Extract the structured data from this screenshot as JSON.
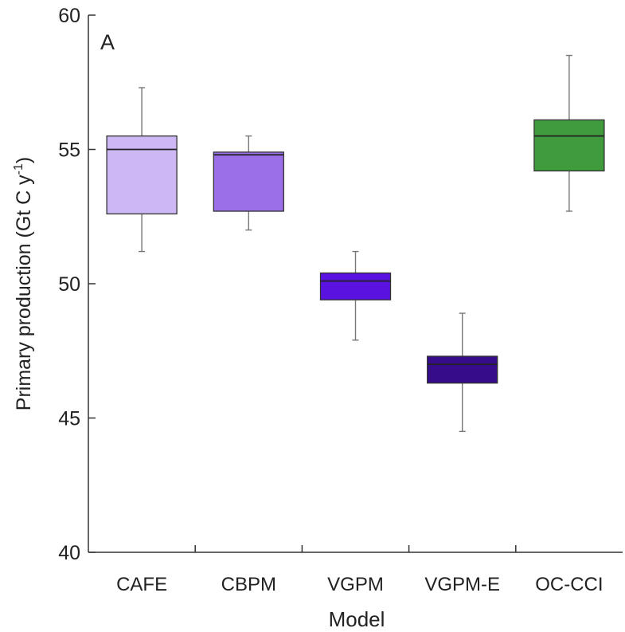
{
  "chart_data": {
    "type": "boxplot",
    "panel_label": "A",
    "xlabel": "Model",
    "ylabel_main": "Primary production (Gt C y",
    "ylabel_sup": "-1",
    "ylabel_tail": ")",
    "ylim": [
      40,
      60
    ],
    "yticks": [
      40,
      45,
      50,
      55,
      60
    ],
    "grid": false,
    "categories": [
      "CAFE",
      "CBPM",
      "VGPM",
      "VGPM-E",
      "OC-CCI"
    ],
    "boxes": [
      {
        "category": "CAFE",
        "whisker_low": 51.2,
        "q1": 52.6,
        "median": 55.0,
        "q3": 55.5,
        "whisker_high": 57.3,
        "color": "#cdb8f5"
      },
      {
        "category": "CBPM",
        "whisker_low": 52.0,
        "q1": 52.7,
        "median": 54.8,
        "q3": 54.9,
        "whisker_high": 55.5,
        "color": "#9a6fe8"
      },
      {
        "category": "VGPM",
        "whisker_low": 47.9,
        "q1": 49.4,
        "median": 50.1,
        "q3": 50.4,
        "whisker_high": 51.2,
        "color": "#5a12e0"
      },
      {
        "category": "VGPM-E",
        "whisker_low": 44.5,
        "q1": 46.3,
        "median": 47.0,
        "q3": 47.3,
        "whisker_high": 48.9,
        "color": "#360c8a"
      },
      {
        "category": "OC-CCI",
        "whisker_low": 52.7,
        "q1": 54.2,
        "median": 55.5,
        "q3": 56.1,
        "whisker_high": 58.5,
        "color": "#3f9b3c"
      }
    ]
  }
}
